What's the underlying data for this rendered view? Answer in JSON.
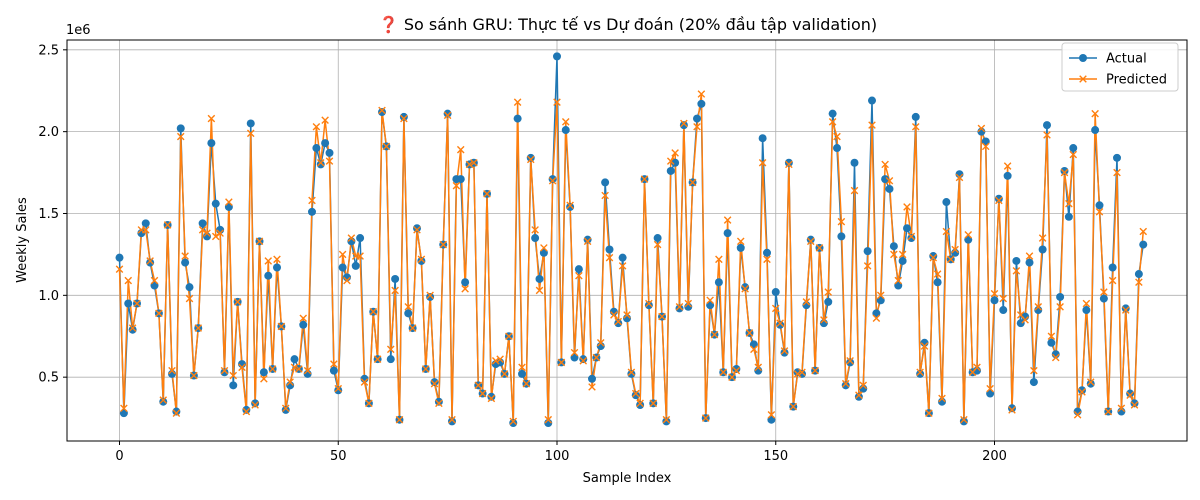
{
  "chart_data": {
    "type": "line",
    "title": "❓ So sánh GRU: Thực tế vs Dự đoán (20% đầu tập validation)",
    "xlabel": "Sample Index",
    "ylabel": "Weekly Sales",
    "y_offset_label": "1e6",
    "xlim": [
      -12,
      244
    ],
    "ylim": [
      110000,
      2560000
    ],
    "xticks": [
      0,
      50,
      100,
      150,
      200
    ],
    "yticks": [
      500000,
      1000000,
      1500000,
      2000000,
      2500000
    ],
    "xtick_labels": [
      "0",
      "50",
      "100",
      "150",
      "200"
    ],
    "ytick_labels": [
      "0.5",
      "1.0",
      "1.5",
      "2.0",
      "2.5"
    ],
    "grid": true,
    "legend_position": "top-right",
    "series": [
      {
        "name": "Actual",
        "color": "#1f77b4",
        "marker": "circle",
        "values": [
          1230000,
          280000,
          950000,
          790000,
          950000,
          1380000,
          1440000,
          1200000,
          1060000,
          890000,
          350000,
          1430000,
          520000,
          290000,
          2020000,
          1200000,
          1050000,
          510000,
          800000,
          1440000,
          1360000,
          1930000,
          1560000,
          1400000,
          530000,
          1540000,
          450000,
          960000,
          580000,
          300000,
          2050000,
          340000,
          1330000,
          530000,
          1120000,
          550000,
          1170000,
          810000,
          300000,
          450000,
          610000,
          550000,
          820000,
          520000,
          1510000,
          1900000,
          1800000,
          1930000,
          1870000,
          540000,
          420000,
          1170000,
          1110000,
          1330000,
          1180000,
          1350000,
          490000,
          340000,
          900000,
          610000,
          2120000,
          1910000,
          610000,
          1100000,
          240000,
          2090000,
          890000,
          800000,
          1410000,
          1210000,
          550000,
          990000,
          470000,
          350000,
          1310000,
          2110000,
          230000,
          1710000,
          1710000,
          1080000,
          1800000,
          1810000,
          450000,
          400000,
          1620000,
          380000,
          580000,
          590000,
          520000,
          750000,
          220000,
          2080000,
          520000,
          460000,
          1840000,
          1350000,
          1100000,
          1260000,
          220000,
          1710000,
          2460000,
          590000,
          2010000,
          1540000,
          620000,
          1160000,
          610000,
          1340000,
          490000,
          620000,
          690000,
          1690000,
          1280000,
          900000,
          830000,
          1230000,
          860000,
          520000,
          390000,
          330000,
          1710000,
          940000,
          340000,
          1350000,
          870000,
          230000,
          1760000,
          1810000,
          920000,
          2040000,
          930000,
          1690000,
          2080000,
          2170000,
          250000,
          940000,
          760000,
          1080000,
          530000,
          1380000,
          500000,
          550000,
          1290000,
          1050000,
          770000,
          700000,
          540000,
          1960000,
          1260000,
          240000,
          1020000,
          820000,
          650000,
          1810000,
          320000,
          530000,
          520000,
          940000,
          1340000,
          540000,
          1290000,
          830000,
          960000,
          2110000,
          1900000,
          1360000,
          450000,
          590000,
          1810000,
          380000,
          430000,
          1270000,
          2190000,
          890000,
          970000,
          1710000,
          1650000,
          1300000,
          1060000,
          1210000,
          1410000,
          1350000,
          2090000,
          520000,
          710000,
          280000,
          1240000,
          1080000,
          350000,
          1570000,
          1220000,
          1260000,
          1740000,
          230000,
          1340000,
          530000,
          540000,
          2000000,
          1940000,
          400000,
          970000,
          1590000,
          910000,
          1730000,
          310000,
          1210000,
          830000,
          870000,
          1200000,
          470000,
          910000,
          1280000,
          2040000,
          710000,
          640000,
          990000,
          1760000,
          1480000,
          1900000,
          290000,
          420000,
          910000,
          460000,
          2010000,
          1550000,
          980000,
          290000,
          1170000,
          1840000,
          290000,
          920000,
          400000,
          340000,
          1130000,
          1310000
        ]
      },
      {
        "name": "Predicted",
        "color": "#ff7f0e",
        "marker": "x",
        "values": [
          1160000,
          310000,
          1090000,
          800000,
          950000,
          1400000,
          1400000,
          1210000,
          1090000,
          890000,
          360000,
          1430000,
          540000,
          280000,
          1970000,
          1240000,
          980000,
          510000,
          800000,
          1400000,
          1380000,
          2080000,
          1360000,
          1380000,
          540000,
          1570000,
          510000,
          960000,
          560000,
          290000,
          1990000,
          330000,
          1330000,
          490000,
          1210000,
          550000,
          1220000,
          810000,
          310000,
          470000,
          560000,
          550000,
          860000,
          540000,
          1580000,
          2030000,
          1810000,
          2070000,
          1820000,
          580000,
          430000,
          1250000,
          1090000,
          1350000,
          1240000,
          1240000,
          470000,
          340000,
          900000,
          610000,
          2130000,
          1910000,
          670000,
          1030000,
          240000,
          2080000,
          930000,
          800000,
          1400000,
          1220000,
          550000,
          1000000,
          460000,
          340000,
          1310000,
          2100000,
          240000,
          1670000,
          1890000,
          1040000,
          1800000,
          1810000,
          450000,
          400000,
          1620000,
          370000,
          600000,
          610000,
          520000,
          750000,
          230000,
          2180000,
          560000,
          460000,
          1830000,
          1400000,
          1030000,
          1290000,
          240000,
          1700000,
          2180000,
          590000,
          2060000,
          1550000,
          650000,
          1120000,
          600000,
          1330000,
          440000,
          620000,
          710000,
          1610000,
          1230000,
          880000,
          840000,
          1180000,
          880000,
          530000,
          400000,
          340000,
          1710000,
          950000,
          340000,
          1310000,
          870000,
          240000,
          1820000,
          1870000,
          930000,
          2050000,
          950000,
          1690000,
          2030000,
          2230000,
          250000,
          970000,
          760000,
          1220000,
          530000,
          1460000,
          500000,
          540000,
          1330000,
          1040000,
          770000,
          670000,
          560000,
          1810000,
          1220000,
          270000,
          920000,
          830000,
          660000,
          1800000,
          320000,
          520000,
          530000,
          960000,
          1330000,
          540000,
          1290000,
          850000,
          1020000,
          2060000,
          1970000,
          1450000,
          460000,
          600000,
          1640000,
          390000,
          450000,
          1180000,
          2040000,
          860000,
          1000000,
          1800000,
          1700000,
          1250000,
          1090000,
          1250000,
          1540000,
          1360000,
          2030000,
          530000,
          690000,
          280000,
          1230000,
          1130000,
          370000,
          1390000,
          1220000,
          1280000,
          1720000,
          240000,
          1370000,
          530000,
          560000,
          2020000,
          1910000,
          430000,
          1010000,
          1580000,
          980000,
          1790000,
          300000,
          1150000,
          880000,
          850000,
          1240000,
          540000,
          930000,
          1350000,
          1980000,
          750000,
          620000,
          930000,
          1750000,
          1560000,
          1860000,
          270000,
          410000,
          950000,
          470000,
          2110000,
          1510000,
          1020000,
          290000,
          1090000,
          1750000,
          310000,
          910000,
          390000,
          330000,
          1080000,
          1390000
        ]
      }
    ]
  }
}
